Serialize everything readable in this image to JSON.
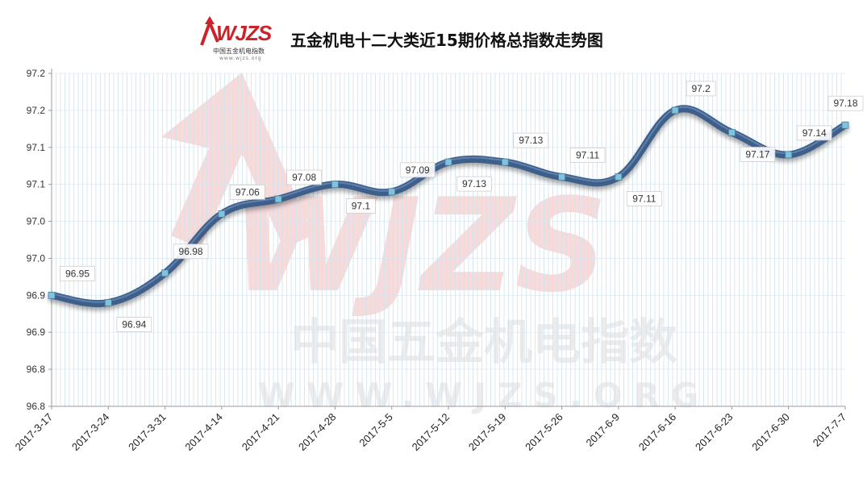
{
  "header": {
    "title": "五金机电十二大类近15期价格总指数走势图",
    "logo": {
      "brand": "WJZS",
      "subtitle": "中国五金机电指数",
      "url": "www.wjzs.org"
    }
  },
  "watermark": {
    "brand": "WJZS",
    "cn": "中国五金机电指数",
    "url": "WWW.WJZS.ORG"
  },
  "colors": {
    "line": "#3d5f8a",
    "line_highlight": "#6d90bc",
    "marker": "#7fc4dc",
    "grid": "#cfe3f0",
    "watermark_red": "#f7dada",
    "watermark_gray": "#ececec"
  },
  "chart_data": {
    "type": "line",
    "title": "五金机电十二大类近15期价格总指数走势图",
    "xlabel": "",
    "ylabel": "",
    "categories": [
      "2017-3-17",
      "2017-3-24",
      "2017-3-31",
      "2017-4-14",
      "2017-4-21",
      "2017-4-28",
      "2017-5-5",
      "2017-5-12",
      "2017-5-19",
      "2017-5-26",
      "2017-6-9",
      "2017-6-16",
      "2017-6-23",
      "2017-6-30",
      "2017-7-7"
    ],
    "values": [
      96.95,
      96.94,
      96.98,
      97.06,
      97.08,
      97.1,
      97.09,
      97.13,
      97.13,
      97.11,
      97.11,
      97.2,
      97.17,
      97.14,
      97.18
    ],
    "data_labels": [
      "96.95",
      "96.94",
      "96.98",
      "97.06",
      "97.08",
      "97.1",
      "97.09",
      "97.13",
      "97.13",
      "97.11",
      "97.11",
      "97.2",
      "97.17",
      "97.14",
      "97.18"
    ],
    "label_positions": [
      "above",
      "below",
      "above",
      "above",
      "above",
      "below",
      "above",
      "below",
      "above",
      "above",
      "below",
      "above",
      "below",
      "above",
      "above"
    ],
    "ylim": [
      96.8,
      97.25
    ],
    "yticks": [
      96.8,
      96.85,
      96.9,
      96.95,
      97.0,
      97.05,
      97.1,
      97.15,
      97.2,
      97.25
    ],
    "ytick_labels": [
      "96.8",
      "96.8",
      "96.9",
      "96.9",
      "97.0",
      "97.0",
      "97.1",
      "97.1",
      "97.2",
      "97.2"
    ],
    "grid": true,
    "legend": "none"
  }
}
